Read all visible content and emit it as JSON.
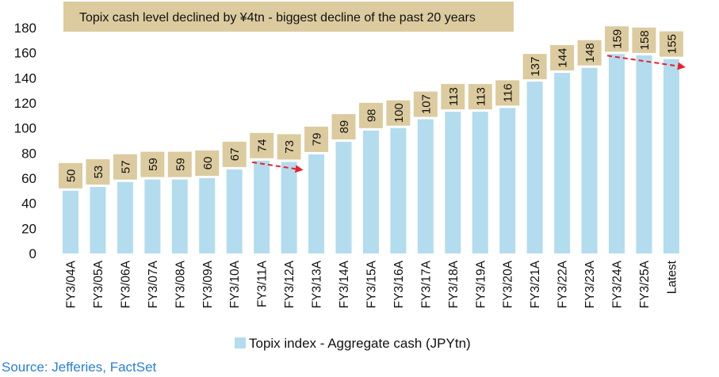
{
  "chart_data": {
    "type": "bar",
    "title": "Topix cash level declined by ¥4tn - biggest decline of the past 20 years",
    "categories": [
      "FY3/04A",
      "FY3/05A",
      "FY3/06A",
      "FY3/07A",
      "FY3/08A",
      "FY3/09A",
      "FY3/10A",
      "FY3/11A",
      "FY3/12A",
      "FY3/13A",
      "FY3/14A",
      "FY3/15A",
      "FY3/16A",
      "FY3/17A",
      "FY3/18A",
      "FY3/19A",
      "FY3/20A",
      "FY3/21A",
      "FY3/22A",
      "FY3/23A",
      "FY3/24A",
      "FY3/25A",
      "Latest"
    ],
    "series": [
      {
        "name": "Topix index - Aggregate cash (JPYtn)",
        "values": [
          50,
          53,
          57,
          59,
          59,
          60,
          67,
          74,
          73,
          79,
          89,
          98,
          100,
          107,
          113,
          113,
          116,
          137,
          144,
          148,
          159,
          158,
          155
        ]
      }
    ],
    "ylim": [
      0,
      180
    ],
    "yticks": [
      0,
      20,
      40,
      60,
      80,
      100,
      120,
      140,
      160,
      180
    ],
    "xlabel": "",
    "ylabel": "",
    "grid": false,
    "legend": "bottom-center",
    "annotations": [
      {
        "type": "arrow",
        "from": "FY3/11A",
        "to": "FY3/12A"
      },
      {
        "type": "arrow",
        "from": "FY3/24A",
        "to": "Latest"
      }
    ],
    "colors": {
      "bar": "#b3dcee",
      "label_box": "#dccb9e",
      "title_box": "#dccb9e",
      "arrow": "#e8232b",
      "source": "#2a7fd4"
    }
  },
  "source": "Source: Jefferies, FactSet"
}
